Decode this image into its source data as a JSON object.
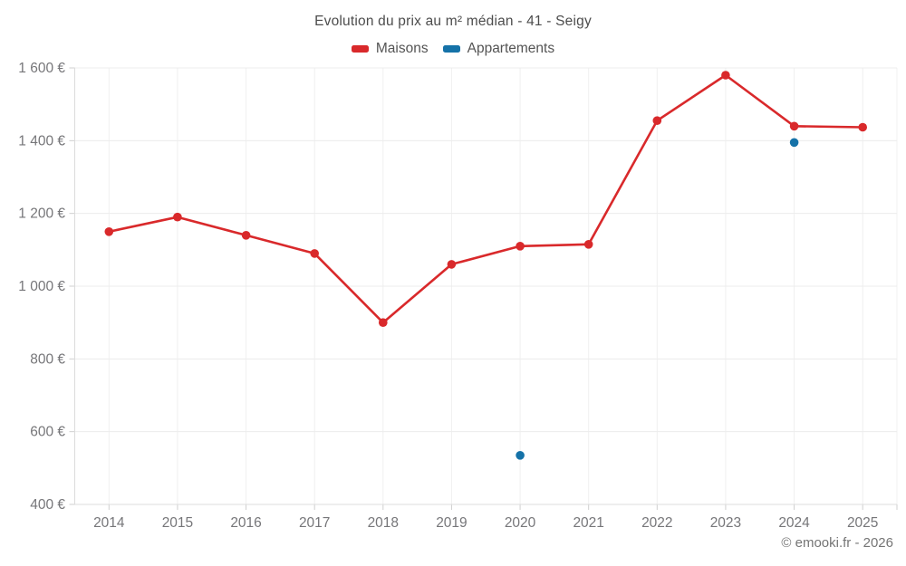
{
  "header": {
    "title": "Evolution du prix au m² médian - 41 - Seigy"
  },
  "legend": {
    "items": [
      {
        "label": "Maisons",
        "color": "#d9292b"
      },
      {
        "label": "Appartements",
        "color": "#1572a8"
      }
    ]
  },
  "footer": {
    "credit": "© emooki.fr - 2026"
  },
  "chart_data": {
    "type": "line",
    "title": "Evolution du prix au m² médian - 41 - Seigy",
    "categories": [
      "2014",
      "2015",
      "2016",
      "2017",
      "2018",
      "2019",
      "2020",
      "2021",
      "2022",
      "2023",
      "2024",
      "2025"
    ],
    "series": [
      {
        "name": "Maisons",
        "color": "#d9292b",
        "mode": "line+markers",
        "values": [
          1150,
          1190,
          1140,
          1090,
          900,
          1060,
          1110,
          1115,
          1455,
          1580,
          1440,
          1437
        ]
      },
      {
        "name": "Appartements",
        "color": "#1572a8",
        "mode": "markers",
        "values": [
          null,
          null,
          null,
          null,
          null,
          null,
          535,
          null,
          null,
          null,
          1395,
          null
        ]
      }
    ],
    "yticks": [
      400,
      600,
      800,
      1000,
      1200,
      1400,
      1600
    ],
    "ytick_labels": [
      "400 €",
      "600 €",
      "800 €",
      "1 000 €",
      "1 200 €",
      "1 400 €",
      "1 600 €"
    ],
    "ylim": [
      400,
      1650
    ],
    "unit": "€",
    "grid": true,
    "legend_position": "top"
  }
}
